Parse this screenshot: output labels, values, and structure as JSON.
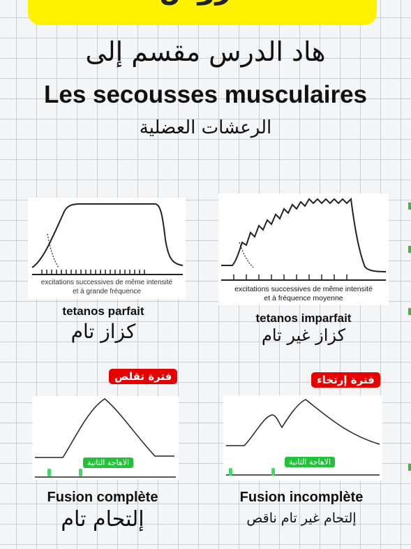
{
  "banner": {
    "text": "دروس"
  },
  "title_ar": "هاد الدرس مقسم إلى",
  "title_fr": "Les secousses musculaires",
  "subtitle_ar": "الرعشات العضلية",
  "panels": {
    "tetanos_parfait": {
      "caption_line1": "excitations successives de même intensité",
      "caption_line2": "et à  grande  fréquence",
      "label_fr": "tetanos parfait",
      "label_ar": "كزاز تام"
    },
    "tetanos_imparfait": {
      "caption_line1": "excitations successives de même intensité",
      "caption_line2": "et à fréquence moyenne",
      "label_fr": "tetanos imparfait",
      "label_ar": "كزاز غير تام"
    },
    "fusion_complete": {
      "badge": "فترة تقلص",
      "excitation_label": "الاهاجة الثانية",
      "label_fr": "Fusion complète",
      "label_ar": "إلتحام تام"
    },
    "fusion_incomplete": {
      "badge": "فترة إرتخاء",
      "excitation_label": "الاهاجة الثانية",
      "label_fr": "Fusion incomplète",
      "label_ar": "إلتحام غير تام ناقص"
    }
  },
  "colors": {
    "banner": "#fff200",
    "badge_red": "#e60000",
    "badge_green": "#22c13a",
    "grid": "#c9ccd3"
  }
}
